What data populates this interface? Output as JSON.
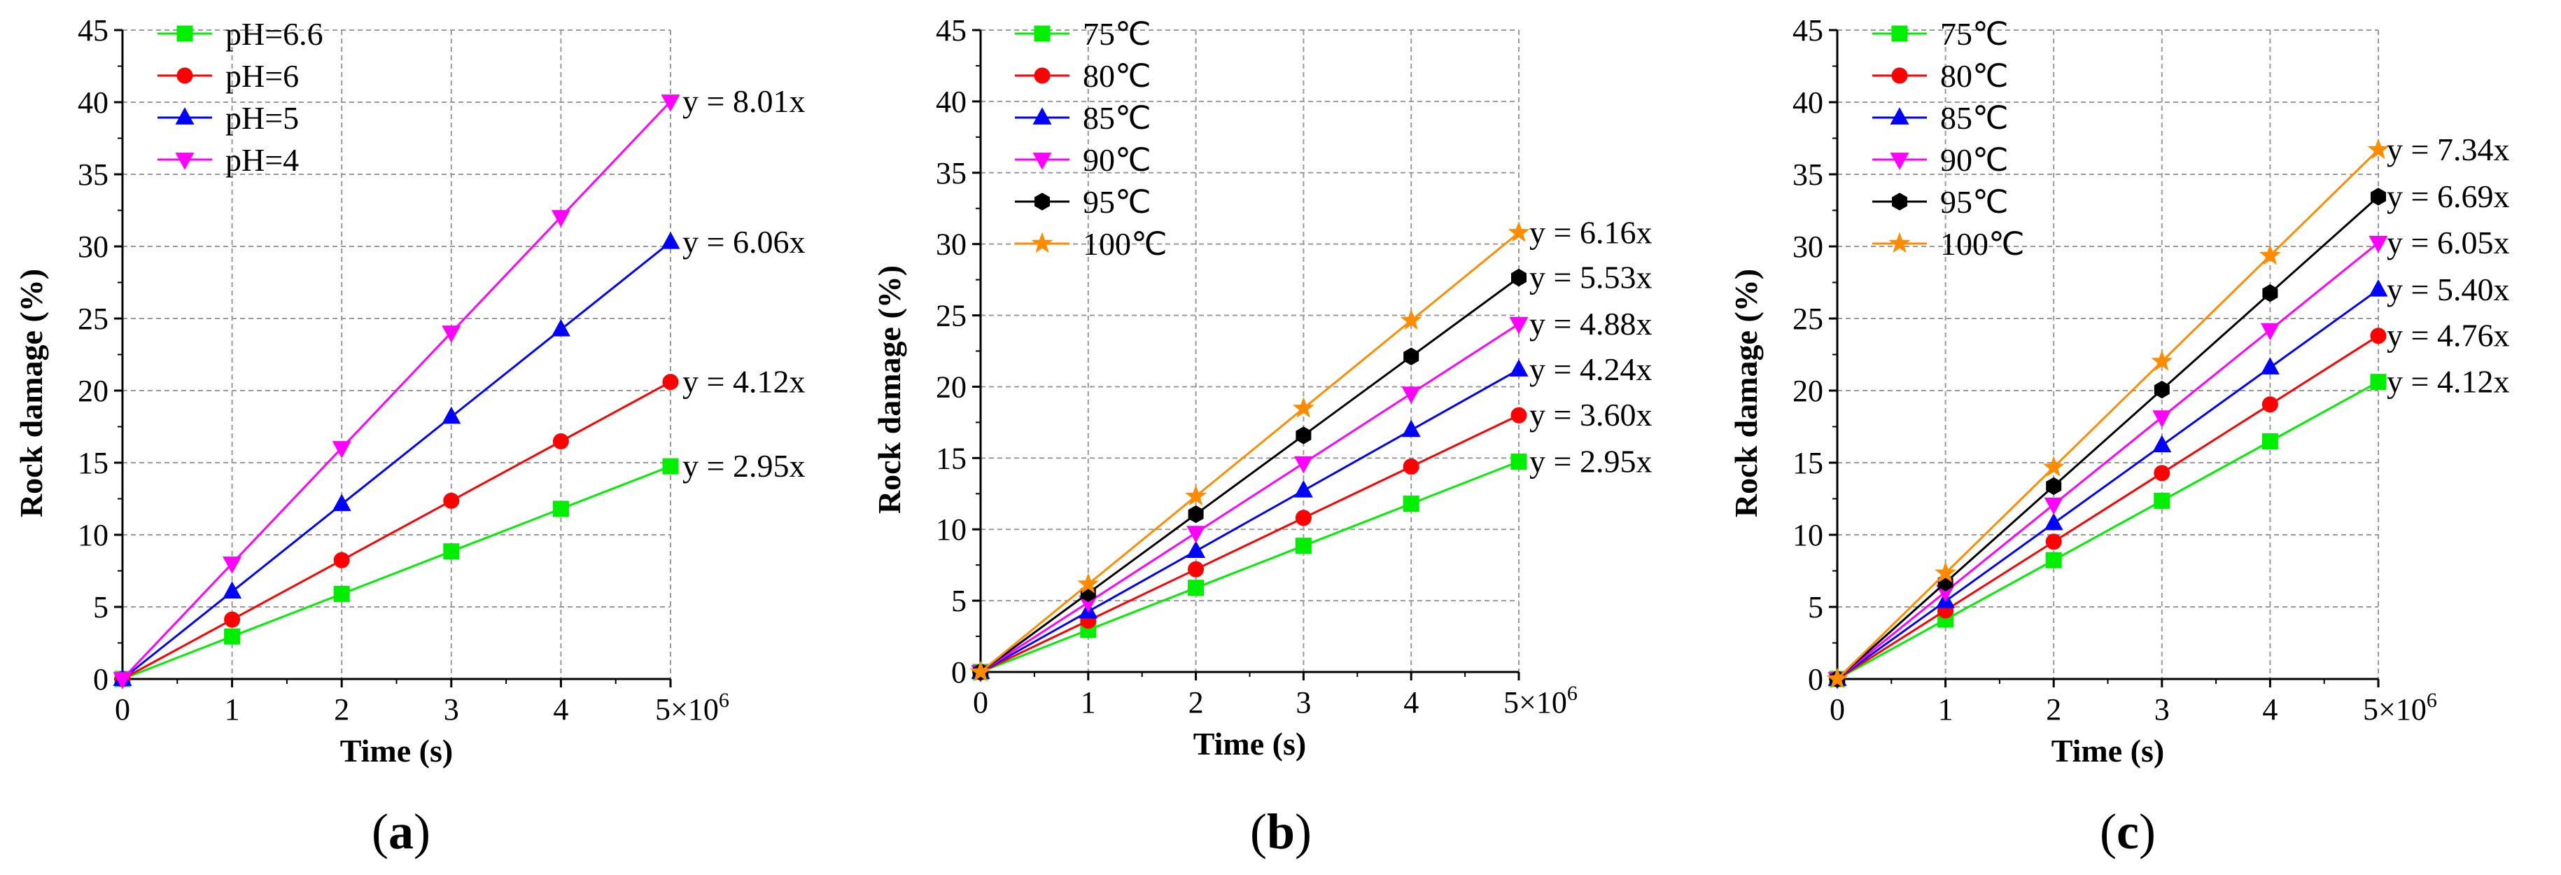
{
  "chart_data": [
    {
      "type": "line",
      "panel_label": "a",
      "xlabel": "Time (s)",
      "ylabel": "Rock damage (%)",
      "x_multiplier": "5×10",
      "x_multiplier_exp": "6",
      "x": [
        0,
        1,
        2,
        3,
        4,
        5
      ],
      "xticks": [
        "0",
        "1",
        "2",
        "3",
        "4"
      ],
      "ylim": [
        0,
        45
      ],
      "yticks": [
        "0",
        "5",
        "10",
        "15",
        "20",
        "25",
        "30",
        "35",
        "40",
        "45"
      ],
      "grid": true,
      "legend_position": "top-left",
      "series": [
        {
          "name": "pH=6.6",
          "color": "#00ee00",
          "marker": "square",
          "values": [
            0,
            2.95,
            5.9,
            8.85,
            11.8,
            14.75
          ],
          "fit": "y = 2.95x"
        },
        {
          "name": "pH=6",
          "color": "#ff0000",
          "marker": "circle",
          "values": [
            0,
            4.12,
            8.24,
            12.36,
            16.48,
            20.6
          ],
          "fit": "y = 4.12x"
        },
        {
          "name": "pH=5",
          "color": "#0000ff",
          "marker": "triangle-up",
          "values": [
            0,
            6.06,
            12.12,
            18.18,
            24.24,
            30.3
          ],
          "fit": "y = 6.06x"
        },
        {
          "name": "pH=4",
          "color": "#ff00ff",
          "marker": "triangle-down",
          "values": [
            0,
            8.01,
            16.02,
            24.03,
            32.04,
            40.05
          ],
          "fit": "y = 8.01x"
        }
      ]
    },
    {
      "type": "line",
      "panel_label": "b",
      "xlabel": "Time (s)",
      "ylabel": "Rock damage (%)",
      "x_multiplier": "5×10",
      "x_multiplier_exp": "6",
      "x": [
        0,
        1,
        2,
        3,
        4,
        5
      ],
      "xticks": [
        "0",
        "1",
        "2",
        "3",
        "4"
      ],
      "ylim": [
        0,
        45
      ],
      "yticks": [
        "0",
        "5",
        "10",
        "15",
        "20",
        "25",
        "30",
        "35",
        "40",
        "45"
      ],
      "grid": true,
      "legend_position": "top-left",
      "series": [
        {
          "name": "75℃",
          "color": "#00ee00",
          "marker": "square",
          "values": [
            0,
            2.95,
            5.9,
            8.85,
            11.8,
            14.75
          ],
          "fit": "y = 2.95x"
        },
        {
          "name": "80℃",
          "color": "#ff0000",
          "marker": "circle",
          "values": [
            0,
            3.6,
            7.2,
            10.8,
            14.4,
            18.0
          ],
          "fit": "y = 3.60x"
        },
        {
          "name": "85℃",
          "color": "#0000ff",
          "marker": "triangle-up",
          "values": [
            0,
            4.24,
            8.48,
            12.72,
            16.96,
            21.2
          ],
          "fit": "y = 4.24x"
        },
        {
          "name": "90℃",
          "color": "#ff00ff",
          "marker": "triangle-down",
          "values": [
            0,
            4.88,
            9.76,
            14.64,
            19.52,
            24.4
          ],
          "fit": "y = 4.88x"
        },
        {
          "name": "95℃",
          "color": "#000000",
          "marker": "hexagon",
          "values": [
            0,
            5.53,
            11.06,
            16.59,
            22.12,
            27.65
          ],
          "fit": "y = 5.53x"
        },
        {
          "name": "100℃",
          "color": "#ff8c00",
          "marker": "star",
          "values": [
            0,
            6.16,
            12.32,
            18.48,
            24.64,
            30.8
          ],
          "fit": "y = 6.16x"
        }
      ]
    },
    {
      "type": "line",
      "panel_label": "c",
      "xlabel": "Time (s)",
      "ylabel": "Rock damage (%)",
      "x_multiplier": "5×10",
      "x_multiplier_exp": "6",
      "x": [
        0,
        1,
        2,
        3,
        4,
        5
      ],
      "xticks": [
        "0",
        "1",
        "2",
        "3",
        "4"
      ],
      "ylim": [
        0,
        45
      ],
      "yticks": [
        "0",
        "5",
        "10",
        "15",
        "20",
        "25",
        "30",
        "35",
        "40",
        "45"
      ],
      "grid": true,
      "legend_position": "top-left",
      "series": [
        {
          "name": "75℃",
          "color": "#00ee00",
          "marker": "square",
          "values": [
            0,
            4.12,
            8.24,
            12.36,
            16.48,
            20.6
          ],
          "fit": "y = 4.12x"
        },
        {
          "name": "80℃",
          "color": "#ff0000",
          "marker": "circle",
          "values": [
            0,
            4.76,
            9.52,
            14.28,
            19.04,
            23.8
          ],
          "fit": "y = 4.76x"
        },
        {
          "name": "85℃",
          "color": "#0000ff",
          "marker": "triangle-up",
          "values": [
            0,
            5.4,
            10.8,
            16.2,
            21.6,
            27.0
          ],
          "fit": "y = 5.40x"
        },
        {
          "name": "90℃",
          "color": "#ff00ff",
          "marker": "triangle-down",
          "values": [
            0,
            6.05,
            12.1,
            18.15,
            24.2,
            30.25
          ],
          "fit": "y = 6.05x"
        },
        {
          "name": "95℃",
          "color": "#000000",
          "marker": "hexagon",
          "values": [
            0,
            6.69,
            13.38,
            20.07,
            26.76,
            33.45
          ],
          "fit": "y = 6.69x"
        },
        {
          "name": "100℃",
          "color": "#ff8c00",
          "marker": "star",
          "values": [
            0,
            7.34,
            14.68,
            22.02,
            29.36,
            36.7
          ],
          "fit": "y = 7.34x"
        }
      ]
    }
  ]
}
